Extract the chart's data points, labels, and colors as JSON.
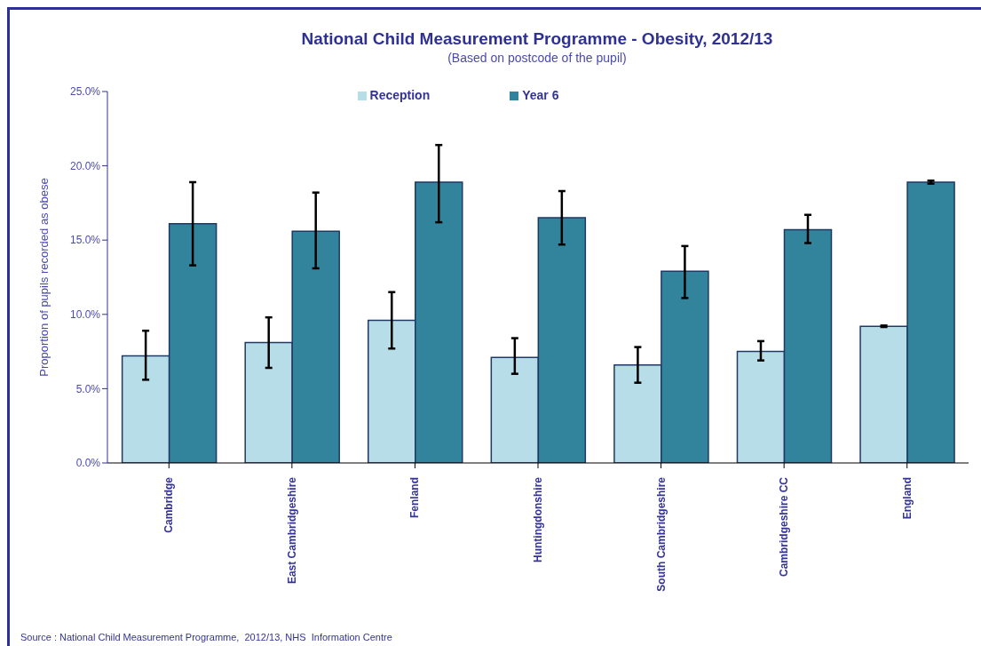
{
  "chart_data": {
    "type": "bar",
    "title": "National Child Measurement Programme - Obesity, 2012/13",
    "subtitle": "(Based on postcode of the pupil)",
    "ylabel": "Proportion of pupils recorded  as obese",
    "annotations": [
      "Source : National Child Measurement Programme,  2012/13, NHS  Information Centre"
    ],
    "categories": [
      "Cambridge",
      "East Cambridgeshire",
      "Fenland",
      "Huntingdonshire",
      "South Cambridgeshire",
      "Cambridgeshire CC",
      "England"
    ],
    "series": [
      {
        "name": "Reception",
        "color": "#b7dde8",
        "values": [
          7.2,
          8.1,
          9.6,
          7.1,
          6.6,
          7.5,
          9.2
        ],
        "errors": [
          [
            5.6,
            8.9
          ],
          [
            6.4,
            9.8
          ],
          [
            7.7,
            11.5
          ],
          [
            6.0,
            8.4
          ],
          [
            5.4,
            7.8
          ],
          [
            6.9,
            8.2
          ],
          0.05
        ]
      },
      {
        "name": "Year 6",
        "color": "#31849b",
        "values": [
          16.1,
          15.6,
          18.9,
          16.5,
          12.9,
          15.7,
          18.9
        ],
        "errors": [
          [
            13.3,
            18.9
          ],
          [
            13.1,
            18.2
          ],
          [
            16.2,
            21.4
          ],
          [
            14.7,
            18.3
          ],
          [
            11.1,
            14.6
          ],
          [
            14.8,
            16.7
          ],
          0.1
        ]
      }
    ],
    "ylim": [
      0,
      25
    ],
    "yticks": [
      {
        "value": 0,
        "label": "0.0%"
      },
      {
        "value": 5,
        "label": "5.0%"
      },
      {
        "value": 10,
        "label": "10.0%"
      },
      {
        "value": 15,
        "label": "15.0%"
      },
      {
        "value": 20,
        "label": "20.0%"
      },
      {
        "value": 25,
        "label": "25.0%"
      }
    ],
    "grid": false,
    "legend": "top"
  }
}
